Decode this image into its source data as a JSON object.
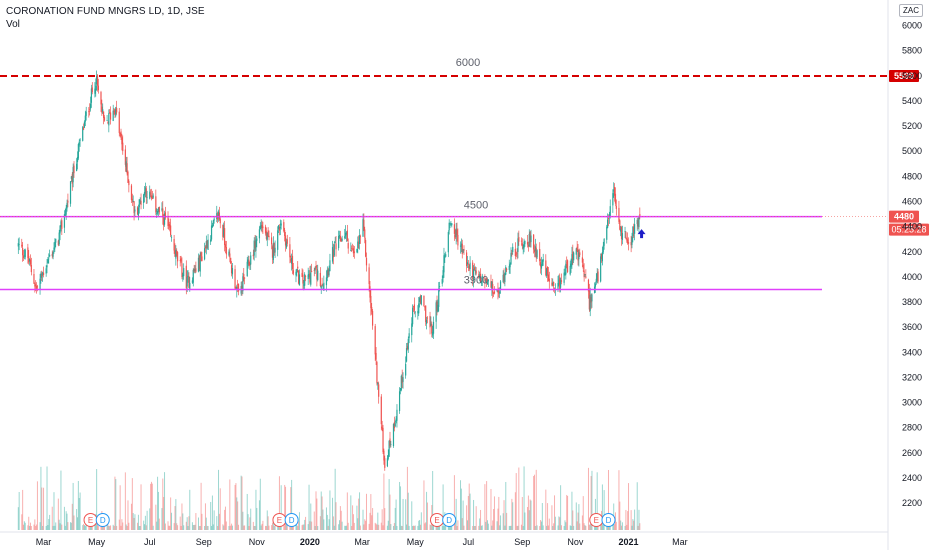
{
  "chart_title": "CORONATION FUND MNGRS LD, 1D, JSE",
  "volume_label": "Vol",
  "currency": "ZAC",
  "colors": {
    "up": "#26a69a",
    "down": "#ef5350",
    "resistance": "#d50000",
    "support_zone": "#e040fb",
    "arrow": "#1e1ec8",
    "current_price_badge": "#ef5350"
  },
  "chart_data": {
    "type": "candlestick",
    "x_ticks": [
      "Mar",
      "May",
      "Jul",
      "Sep",
      "Nov",
      "2020",
      "Mar",
      "May",
      "Jul",
      "Sep",
      "Nov",
      "2021",
      "Mar"
    ],
    "y_ticks": [
      "6000",
      "5800",
      "5600",
      "5400",
      "5200",
      "5000",
      "4800",
      "4600",
      "4400",
      "4200",
      "4000",
      "3800",
      "3600",
      "3400",
      "3200",
      "3000",
      "2800",
      "2600",
      "2400",
      "2200"
    ],
    "ylim": [
      2050,
      6060
    ],
    "grid": false,
    "horizontal_lines": [
      {
        "name": "resistance",
        "value": 5599,
        "style": "dashed",
        "price_label": "5599",
        "annotation": "6000"
      },
      {
        "name": "mid-level",
        "value": 4480,
        "style": "solid",
        "annotation": "4500"
      },
      {
        "name": "support",
        "value": 3900,
        "style": "solid",
        "annotation": "3900"
      }
    ],
    "current_price": "4480",
    "countdown": "05:25:28",
    "events": [
      "E",
      "D",
      "E",
      "D",
      "E",
      "D",
      "E",
      "D"
    ],
    "price_path": [
      [
        "2019-01-31",
        4250
      ],
      [
        "2019-02-11",
        4150
      ],
      [
        "2019-02-21",
        3900
      ],
      [
        "2019-03-04",
        4100
      ],
      [
        "2019-03-18",
        4300
      ],
      [
        "2019-03-28",
        4580
      ],
      [
        "2019-04-08",
        4950
      ],
      [
        "2019-04-18",
        5250
      ],
      [
        "2019-04-30",
        5580
      ],
      [
        "2019-05-10",
        5200
      ],
      [
        "2019-05-22",
        5350
      ],
      [
        "2019-06-03",
        4900
      ],
      [
        "2019-06-14",
        4500
      ],
      [
        "2019-06-26",
        4700
      ],
      [
        "2019-07-08",
        4550
      ],
      [
        "2019-07-19",
        4450
      ],
      [
        "2019-08-01",
        4150
      ],
      [
        "2019-08-13",
        3950
      ],
      [
        "2019-08-26",
        4100
      ],
      [
        "2019-09-06",
        4300
      ],
      [
        "2019-09-18",
        4500
      ],
      [
        "2019-09-30",
        4150
      ],
      [
        "2019-10-11",
        3850
      ],
      [
        "2019-10-25",
        4150
      ],
      [
        "2019-11-06",
        4420
      ],
      [
        "2019-11-19",
        4200
      ],
      [
        "2019-11-29",
        4450
      ],
      [
        "2019-12-11",
        4100
      ],
      [
        "2019-12-23",
        3950
      ],
      [
        "2020-01-06",
        4050
      ],
      [
        "2020-01-16",
        3950
      ],
      [
        "2020-01-28",
        4200
      ],
      [
        "2020-02-10",
        4350
      ],
      [
        "2020-02-21",
        4150
      ],
      [
        "2020-03-02",
        4400
      ],
      [
        "2020-03-12",
        3700
      ],
      [
        "2020-03-20",
        3050
      ],
      [
        "2020-03-27",
        2500
      ],
      [
        "2020-04-06",
        2800
      ],
      [
        "2020-04-16",
        3200
      ],
      [
        "2020-04-28",
        3700
      ],
      [
        "2020-05-08",
        3800
      ],
      [
        "2020-05-20",
        3550
      ],
      [
        "2020-05-29",
        3900
      ],
      [
        "2020-06-10",
        4450
      ],
      [
        "2020-06-19",
        4300
      ],
      [
        "2020-06-30",
        4100
      ],
      [
        "2020-07-10",
        4000
      ],
      [
        "2020-07-22",
        3950
      ],
      [
        "2020-08-04",
        3850
      ],
      [
        "2020-08-14",
        4100
      ],
      [
        "2020-08-27",
        4250
      ],
      [
        "2020-09-08",
        4300
      ],
      [
        "2020-09-18",
        4200
      ],
      [
        "2020-09-30",
        4000
      ],
      [
        "2020-10-09",
        3850
      ],
      [
        "2020-10-20",
        4050
      ],
      [
        "2020-10-30",
        4200
      ],
      [
        "2020-11-09",
        4100
      ],
      [
        "2020-11-17",
        3800
      ],
      [
        "2020-11-27",
        4000
      ],
      [
        "2020-12-07",
        4350
      ],
      [
        "2020-12-14",
        4700
      ],
      [
        "2020-12-23",
        4350
      ],
      [
        "2021-01-04",
        4300
      ],
      [
        "2021-01-08",
        4400
      ],
      [
        "2021-01-14",
        4480
      ]
    ]
  }
}
